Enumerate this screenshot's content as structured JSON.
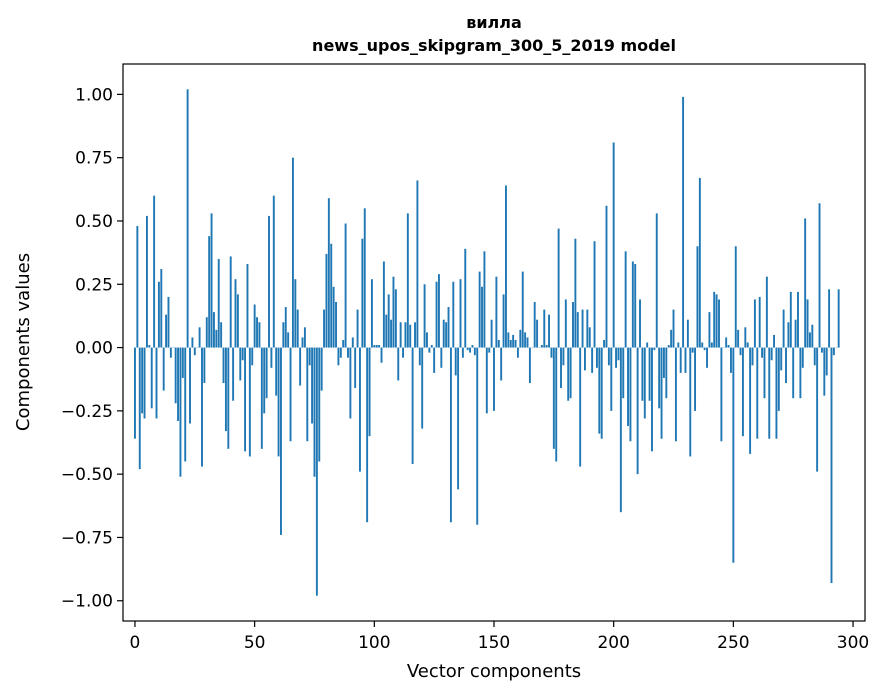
{
  "chart_data": {
    "type": "bar",
    "title": "вилла",
    "subtitle": "news_upos_skipgram_300_5_2019 model",
    "xlabel": "Vector components",
    "ylabel": "Components values",
    "xlim": [
      -5,
      305
    ],
    "ylim": [
      -1.08,
      1.12
    ],
    "xticks": [
      0,
      50,
      100,
      150,
      200,
      250,
      300
    ],
    "xtick_labels": [
      "0",
      "50",
      "100",
      "150",
      "200",
      "250",
      "300"
    ],
    "yticks": [
      1.0,
      0.75,
      0.5,
      0.25,
      0.0,
      -0.25,
      -0.5,
      -0.75,
      -1.0
    ],
    "ytick_labels": [
      "1.00",
      "0.75",
      "0.50",
      "0.25",
      "0.00",
      "−0.25",
      "−0.50",
      "−0.75",
      "−1.00"
    ],
    "bar_color": "#1f77b4",
    "grid": false,
    "values": [
      -0.36,
      0.48,
      -0.48,
      -0.26,
      -0.28,
      0.52,
      0.01,
      -0.24,
      0.6,
      -0.28,
      0.26,
      0.31,
      -0.17,
      0.13,
      0.2,
      -0.04,
      0.0,
      -0.22,
      -0.29,
      -0.51,
      -0.12,
      -0.45,
      1.02,
      -0.3,
      0.04,
      -0.03,
      0.0,
      0.08,
      -0.47,
      -0.14,
      0.12,
      0.44,
      0.53,
      0.14,
      0.07,
      0.35,
      0.1,
      -0.14,
      -0.33,
      -0.4,
      0.36,
      -0.21,
      0.27,
      0.21,
      -0.13,
      -0.05,
      -0.41,
      0.33,
      -0.43,
      -0.07,
      0.17,
      0.12,
      0.1,
      -0.4,
      -0.26,
      -0.2,
      0.52,
      -0.08,
      0.6,
      -0.19,
      -0.43,
      -0.74,
      0.1,
      0.16,
      0.06,
      -0.37,
      0.75,
      0.27,
      0.15,
      -0.15,
      0.04,
      0.08,
      -0.37,
      -0.07,
      -0.3,
      -0.51,
      -0.98,
      -0.45,
      -0.17,
      0.15,
      0.37,
      0.59,
      0.41,
      0.24,
      0.18,
      -0.07,
      -0.04,
      0.03,
      0.49,
      -0.04,
      -0.28,
      0.04,
      -0.16,
      0.15,
      -0.49,
      0.43,
      0.55,
      -0.69,
      -0.35,
      0.27,
      0.01,
      0.01,
      0.01,
      -0.06,
      0.34,
      0.13,
      0.21,
      0.11,
      0.28,
      0.23,
      -0.13,
      0.1,
      -0.04,
      0.1,
      0.53,
      0.09,
      -0.46,
      0.1,
      0.66,
      -0.07,
      -0.32,
      0.25,
      0.06,
      -0.02,
      0.01,
      -0.1,
      0.26,
      0.29,
      -0.08,
      0.11,
      0.1,
      0.16,
      -0.69,
      0.26,
      -0.11,
      -0.56,
      0.27,
      -0.04,
      0.39,
      -0.01,
      -0.02,
      0.01,
      -0.03,
      -0.7,
      0.3,
      0.24,
      0.38,
      -0.26,
      -0.02,
      0.11,
      -0.25,
      0.28,
      0.03,
      -0.13,
      0.21,
      0.64,
      0.06,
      0.03,
      0.05,
      0.03,
      -0.04,
      0.07,
      0.3,
      0.06,
      0.04,
      -0.14,
      0.0,
      0.18,
      0.11,
      0.0,
      0.01,
      0.15,
      0.01,
      0.13,
      -0.04,
      -0.4,
      -0.45,
      0.47,
      -0.16,
      -0.07,
      0.19,
      -0.21,
      -0.2,
      0.18,
      0.43,
      0.14,
      -0.47,
      0.15,
      -0.09,
      0.15,
      0.08,
      -0.1,
      0.42,
      -0.08,
      -0.34,
      -0.36,
      0.03,
      0.56,
      -0.07,
      -0.25,
      0.81,
      -0.08,
      -0.05,
      -0.65,
      -0.2,
      0.38,
      -0.31,
      -0.37,
      0.34,
      0.33,
      -0.5,
      0.19,
      -0.21,
      -0.28,
      0.02,
      -0.21,
      -0.41,
      -0.01,
      0.53,
      -0.24,
      -0.36,
      -0.12,
      -0.2,
      0.01,
      0.07,
      0.15,
      -0.37,
      0.02,
      -0.1,
      0.99,
      -0.1,
      0.11,
      -0.43,
      -0.02,
      -0.25,
      0.4,
      0.67,
      0.02,
      -0.01,
      -0.08,
      0.14,
      0.02,
      0.22,
      0.21,
      0.19,
      -0.37,
      0.0,
      0.04,
      0.01,
      -0.1,
      -0.85,
      0.4,
      0.07,
      -0.03,
      -0.35,
      0.08,
      0.02,
      -0.42,
      -0.07,
      0.19,
      -0.36,
      0.2,
      -0.04,
      -0.2,
      0.28,
      -0.36,
      -0.05,
      0.05,
      -0.36,
      -0.25,
      -0.09,
      0.15,
      -0.14,
      0.1,
      0.22,
      -0.2,
      0.11,
      0.22,
      -0.2,
      -0.08,
      0.51,
      0.19,
      0.06,
      0.09,
      -0.07,
      -0.49,
      0.57,
      -0.02,
      -0.19,
      -0.11,
      0.23,
      -0.93,
      -0.03,
      0.0,
      0.23
    ]
  }
}
